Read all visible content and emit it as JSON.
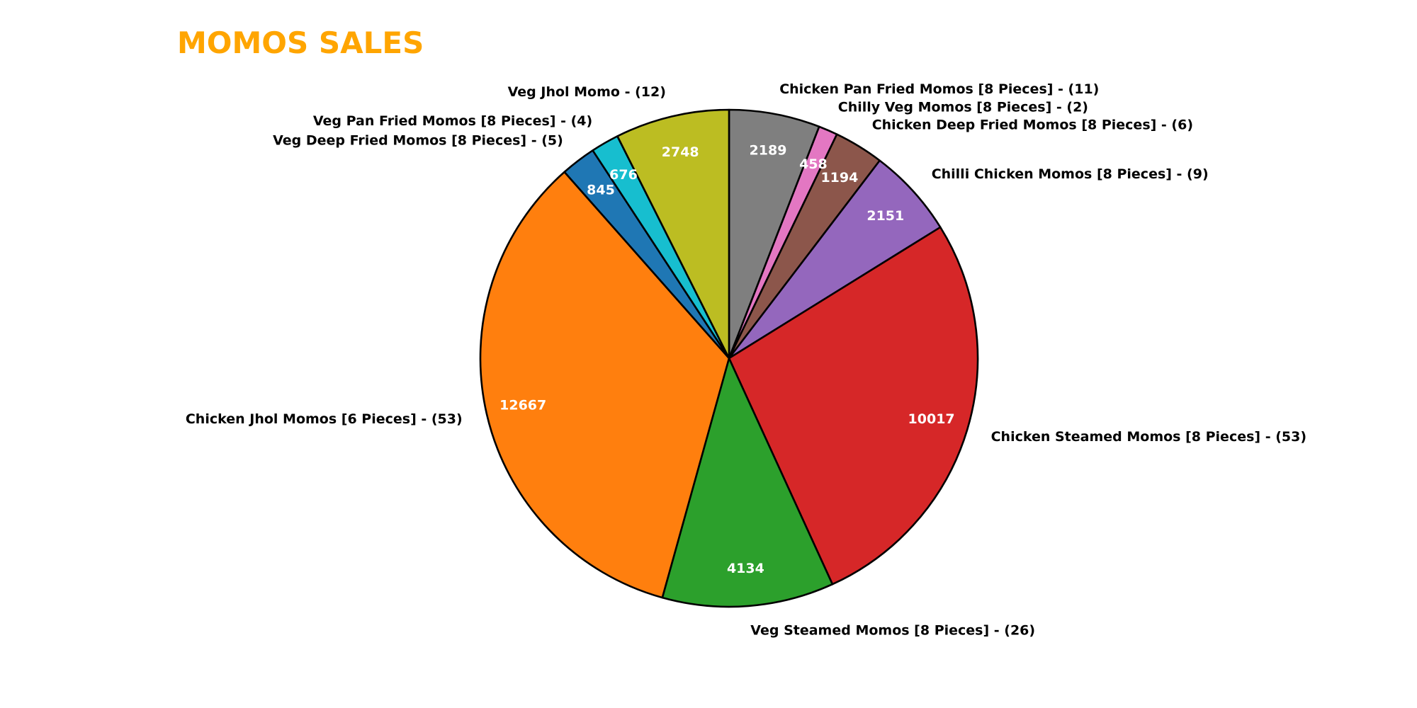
{
  "chart_data": {
    "type": "pie",
    "title": "MOMOS SALES",
    "title_color": "#FFA500",
    "edge_color": "#000000",
    "start_angle_deg": 90,
    "direction": "clockwise",
    "slices": [
      {
        "label": "Chicken Pan Fried Momos [8 Pieces] - (11)",
        "value": 2189,
        "color": "#7f7f7f"
      },
      {
        "label": "Chilly Veg Momos [8 Pieces] - (2)",
        "value": 458,
        "color": "#e377c2"
      },
      {
        "label": "Chicken Deep Fried Momos [8 Pieces] - (6)",
        "value": 1194,
        "color": "#8c564b"
      },
      {
        "label": "Chilli Chicken Momos [8 Pieces] - (9)",
        "value": 2151,
        "color": "#9467bd"
      },
      {
        "label": "Chicken Steamed Momos [8 Pieces] - (53)",
        "value": 10017,
        "color": "#d62728"
      },
      {
        "label": "Veg Steamed Momos [8 Pieces] - (26)",
        "value": 4134,
        "color": "#2ca02c"
      },
      {
        "label": "Chicken Jhol Momos [6 Pieces] - (53)",
        "value": 12667,
        "color": "#ff7f0e"
      },
      {
        "label": "Veg Deep Fried Momos [8 Pieces] - (5)",
        "value": 845,
        "color": "#1f77b4"
      },
      {
        "label": "Veg Pan Fried Momos [8 Pieces] - (4)",
        "value": 676,
        "color": "#17becf"
      },
      {
        "label": "Veg Jhol Momo - (12)",
        "value": 2748,
        "color": "#bcbd22"
      }
    ]
  }
}
